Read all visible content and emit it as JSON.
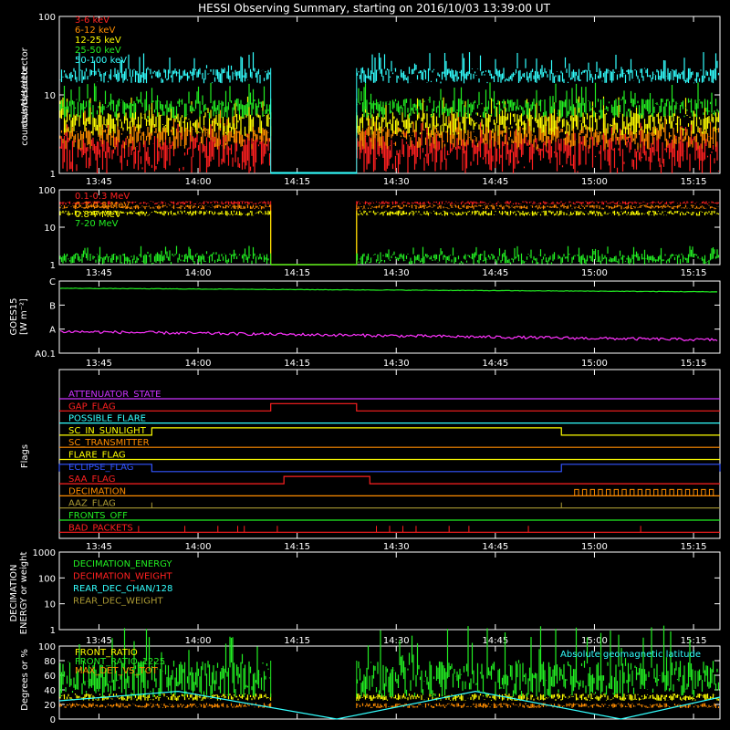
{
  "title": "HESSI Observing Summary, starting on 2016/10/03 13:39:00 UT",
  "colors": {
    "background": "#000000",
    "axes": "#ffffff",
    "red": "#ff2020",
    "orange": "#ff8c00",
    "yellow": "#ffff00",
    "green": "#22ee22",
    "cyan": "#33ffff",
    "magenta": "#ff33ff",
    "blue": "#3355ff",
    "purple": "#cc33ff",
    "olive": "#aa9933"
  },
  "time_axis": {
    "start": "13:39",
    "end": "15:19",
    "tick_labels": [
      "13:45",
      "14:00",
      "14:15",
      "14:30",
      "14:45",
      "15:00",
      "15:15"
    ],
    "tick_times": [
      "13:45",
      "14:00",
      "14:15",
      "14:30",
      "14:45",
      "15:00",
      "15:15"
    ],
    "data_gap": [
      "14:11",
      "14:24"
    ]
  },
  "chart_data": [
    {
      "type": "line",
      "ylabel": "counts/s/detector",
      "ylim": [
        1,
        100
      ],
      "log_scale": true,
      "y_tick_labels": [
        "1",
        "10",
        "100"
      ],
      "y_tick_values": [
        1,
        10,
        100
      ],
      "series": [
        {
          "name": "3-6 keV",
          "color": "red",
          "y_range": [
            1,
            3
          ]
        },
        {
          "name": "6-12 keV",
          "color": "orange",
          "y_range": [
            2,
            4
          ]
        },
        {
          "name": "12-25 keV",
          "color": "yellow",
          "y_range": [
            3,
            6
          ]
        },
        {
          "name": "25-50 keV",
          "color": "green",
          "y_range": [
            5,
            9
          ]
        },
        {
          "name": "50-100 keV",
          "color": "cyan",
          "y_range": [
            14,
            22
          ]
        }
      ]
    },
    {
      "type": "line",
      "ylabel": "counts/s/detector",
      "ylim": [
        1,
        100
      ],
      "log_scale": true,
      "y_tick_labels": [
        "1",
        "10",
        "100"
      ],
      "y_tick_values": [
        1,
        10,
        100
      ],
      "series": [
        {
          "name": "0.1-0.3 MeV",
          "color": "red",
          "y_range": [
            40,
            50
          ]
        },
        {
          "name": "0.3-0.8 MeV",
          "color": "orange",
          "y_range": [
            30,
            40
          ]
        },
        {
          "name": "0.8-7 MeV",
          "color": "yellow",
          "y_range": [
            20,
            28
          ]
        },
        {
          "name": "7-20 MeV",
          "color": "green",
          "y_range": [
            1,
            2
          ]
        }
      ]
    },
    {
      "type": "line",
      "ylabel": "GOES15\n[W m⁻²]",
      "y_tick_labels": [
        "A0.1",
        "A",
        "B",
        "C"
      ],
      "y_tick_values": [
        0,
        1,
        2,
        3
      ],
      "ylim": [
        0,
        3
      ],
      "series": [
        {
          "color": "green",
          "y_range": [
            2.55,
            2.7
          ]
        },
        {
          "color": "magenta",
          "y_range": [
            0.55,
            0.9
          ]
        }
      ]
    },
    {
      "type": "line",
      "ylabel": "Flags",
      "flags": [
        {
          "name": "ATTENUATOR_STATE",
          "color": "purple"
        },
        {
          "name": "GAP_FLAG",
          "color": "red",
          "on": [
            [
              "14:11",
              "14:24"
            ]
          ]
        },
        {
          "name": "POSSIBLE_FLARE",
          "color": "cyan"
        },
        {
          "name": "SC_IN_SUNLIGHT",
          "color": "yellow",
          "on": [
            [
              "13:53",
              "14:55"
            ]
          ]
        },
        {
          "name": "SC_TRANSMITTER",
          "color": "orange"
        },
        {
          "name": "FLARE_FLAG",
          "color": "yellow"
        },
        {
          "name": "ECLIPSE_FLAG",
          "color": "blue",
          "on": [
            [
              "13:39",
              "13:53"
            ],
            [
              "14:55",
              "15:19"
            ]
          ]
        },
        {
          "name": "SAA_FLAG",
          "color": "red",
          "on": [
            [
              "14:13",
              "14:26"
            ]
          ]
        },
        {
          "name": "DECIMATION",
          "color": "orange"
        },
        {
          "name": "AAZ_FLAG",
          "color": "olive"
        },
        {
          "name": "FRONTS_OFF",
          "color": "green"
        },
        {
          "name": "BAD_PACKETS",
          "color": "red"
        }
      ]
    },
    {
      "type": "line",
      "ylabel": "DECIMATION\nENERGY or weight",
      "ylim": [
        1,
        1000
      ],
      "log_scale": true,
      "y_tick_labels": [
        "1",
        "10",
        "100",
        "1000"
      ],
      "y_tick_values": [
        1,
        10,
        100,
        1000
      ],
      "series": [
        {
          "name": "DECIMATION_ENERGY",
          "color": "green"
        },
        {
          "name": "DECIMATION_WEIGHT",
          "color": "red"
        },
        {
          "name": "REAR_DEC_CHAN/128",
          "color": "cyan"
        },
        {
          "name": "REAR_DEC_WEIGHT",
          "color": "olive"
        }
      ]
    },
    {
      "type": "line",
      "ylabel": "Degrees or %",
      "ylim": [
        0,
        100
      ],
      "y_tick_labels": [
        "0",
        "20",
        "40",
        "60",
        "80",
        "100"
      ],
      "y_tick_values": [
        0,
        20,
        40,
        60,
        80,
        100
      ],
      "annotation": "Absolute geomagnetic latitude",
      "series": [
        {
          "name": "FRONT_RATIO",
          "color": "yellow",
          "y_range": [
            25,
            35
          ]
        },
        {
          "name": "FRONT_RATIO_1225",
          "color": "green",
          "y_range": [
            30,
            80
          ]
        },
        {
          "name": "MAX_DET_VS_TOT",
          "color": "orange",
          "y_range": [
            15,
            22
          ]
        },
        {
          "color": "cyan",
          "geomagnetic_latitude": [
            [
              "13:39",
              25
            ],
            [
              "13:57",
              38
            ],
            [
              "14:21",
              0
            ],
            [
              "14:42",
              38
            ],
            [
              "15:04",
              0
            ],
            [
              "15:19",
              30
            ]
          ]
        }
      ]
    }
  ]
}
